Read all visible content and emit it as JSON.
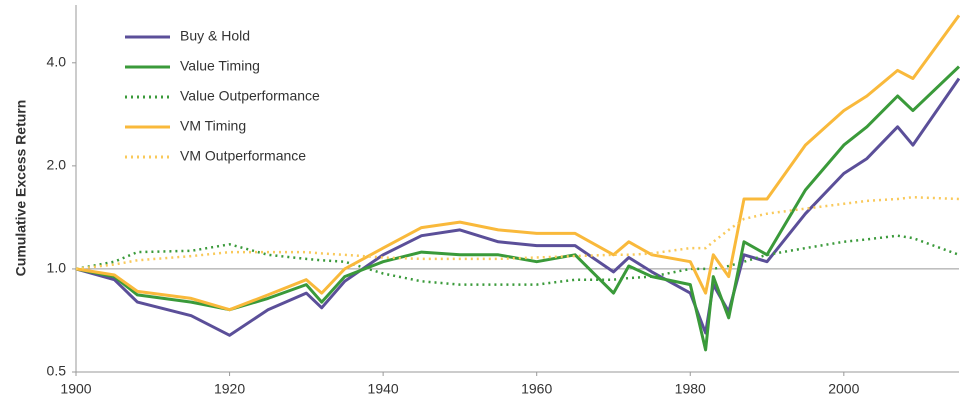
{
  "chart_data": {
    "type": "line",
    "ylabel": "Cumulative Excess Return",
    "log_y": true,
    "xlim": [
      1900,
      2015
    ],
    "xticks": [
      1900,
      1920,
      1940,
      1960,
      1980,
      2000
    ],
    "ylim": [
      0.5,
      5.9
    ],
    "yticks": [
      0.5,
      {
        "value": 1,
        "label": "1.0"
      },
      {
        "value": 2,
        "label": "2.0"
      },
      {
        "value": 4,
        "label": "4.0"
      }
    ],
    "reference_line": 1,
    "legend": "upper left",
    "x": [
      1900,
      1905,
      1908,
      1915,
      1920,
      1925,
      1930,
      1932,
      1935,
      1940,
      1945,
      1950,
      1955,
      1960,
      1965,
      1970,
      1972,
      1975,
      1980,
      1982,
      1983,
      1985,
      1987,
      1990,
      1995,
      2000,
      2003,
      2007,
      2009,
      2015
    ],
    "series": [
      {
        "name": "Buy & Hold",
        "color": "#5b4f99",
        "dashed": false,
        "values": [
          1.0,
          0.93,
          0.8,
          0.73,
          0.64,
          0.76,
          0.85,
          0.77,
          0.92,
          1.1,
          1.25,
          1.3,
          1.2,
          1.17,
          1.17,
          0.98,
          1.08,
          0.98,
          0.85,
          0.65,
          0.9,
          0.75,
          1.1,
          1.05,
          1.45,
          1.9,
          2.1,
          2.6,
          2.3,
          3.6
        ]
      },
      {
        "name": "Value Timing",
        "color": "#3a9a3a",
        "dashed": false,
        "values": [
          1.0,
          0.95,
          0.84,
          0.8,
          0.76,
          0.82,
          0.9,
          0.8,
          0.95,
          1.05,
          1.12,
          1.1,
          1.1,
          1.05,
          1.1,
          0.85,
          1.02,
          0.95,
          0.9,
          0.58,
          0.95,
          0.72,
          1.2,
          1.1,
          1.7,
          2.3,
          2.6,
          3.2,
          2.9,
          3.9
        ]
      },
      {
        "name": "Value Outperformance",
        "color": "#3a9a3a",
        "dashed": true,
        "values": [
          1.0,
          1.05,
          1.12,
          1.13,
          1.18,
          1.1,
          1.07,
          1.06,
          1.05,
          0.97,
          0.92,
          0.9,
          0.9,
          0.9,
          0.93,
          0.93,
          0.94,
          0.95,
          1.0,
          1.0,
          1.0,
          1.02,
          1.05,
          1.1,
          1.15,
          1.2,
          1.22,
          1.25,
          1.23,
          1.1
        ]
      },
      {
        "name": "VM Timing",
        "color": "#f9b93b",
        "dashed": false,
        "values": [
          1.0,
          0.96,
          0.86,
          0.82,
          0.76,
          0.84,
          0.93,
          0.85,
          1.0,
          1.15,
          1.32,
          1.37,
          1.3,
          1.27,
          1.27,
          1.1,
          1.2,
          1.1,
          1.05,
          0.85,
          1.1,
          0.95,
          1.6,
          1.6,
          2.3,
          2.9,
          3.2,
          3.8,
          3.6,
          5.5
        ]
      },
      {
        "name": "VM Outperformance",
        "color": "#f9c95a",
        "dashed": true,
        "values": [
          1.0,
          1.03,
          1.06,
          1.09,
          1.12,
          1.12,
          1.12,
          1.11,
          1.1,
          1.08,
          1.07,
          1.07,
          1.07,
          1.08,
          1.09,
          1.1,
          1.1,
          1.11,
          1.15,
          1.15,
          1.2,
          1.3,
          1.4,
          1.45,
          1.5,
          1.55,
          1.58,
          1.6,
          1.62,
          1.6
        ]
      }
    ]
  }
}
